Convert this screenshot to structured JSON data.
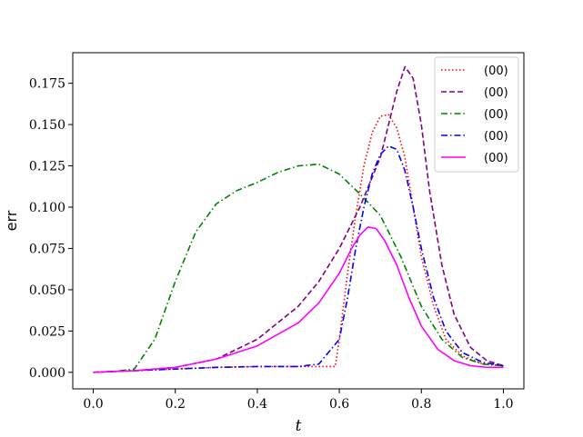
{
  "chart_data": {
    "type": "line",
    "title": "",
    "xlabel": "t",
    "ylabel": "err",
    "xlim": [
      -0.05,
      1.05
    ],
    "ylim": [
      -0.01,
      0.1935
    ],
    "xticks": [
      0.0,
      0.2,
      0.4,
      0.6,
      0.8,
      1.0
    ],
    "xtick_labels": [
      "0.0",
      "0.2",
      "0.4",
      "0.6",
      "0.8",
      "1.0"
    ],
    "yticks": [
      0.0,
      0.025,
      0.05,
      0.075,
      0.1,
      0.125,
      0.15,
      0.175
    ],
    "ytick_labels": [
      "0.000",
      "0.025",
      "0.050",
      "0.075",
      "0.100",
      "0.125",
      "0.150",
      "0.175"
    ],
    "grid": false,
    "legend_position": "top-right",
    "series": [
      {
        "name": "(00)",
        "color": "#ff0000",
        "dash": "dotted",
        "x": [
          0.0,
          0.1,
          0.2,
          0.3,
          0.4,
          0.5,
          0.55,
          0.59,
          0.6,
          0.62,
          0.64,
          0.66,
          0.68,
          0.7,
          0.72,
          0.74,
          0.76,
          0.78,
          0.8,
          0.83,
          0.86,
          0.9,
          0.95,
          1.0
        ],
        "y": [
          0.0,
          0.001,
          0.002,
          0.003,
          0.0035,
          0.0035,
          0.0035,
          0.0035,
          0.02,
          0.06,
          0.095,
          0.125,
          0.145,
          0.155,
          0.156,
          0.148,
          0.13,
          0.1,
          0.07,
          0.04,
          0.02,
          0.01,
          0.005,
          0.004
        ]
      },
      {
        "name": "(00)",
        "color": "#800080",
        "dash": "dashed",
        "x": [
          0.0,
          0.1,
          0.2,
          0.3,
          0.4,
          0.5,
          0.55,
          0.6,
          0.65,
          0.7,
          0.72,
          0.74,
          0.76,
          0.78,
          0.8,
          0.82,
          0.85,
          0.88,
          0.92,
          0.96,
          1.0
        ],
        "y": [
          0.0,
          0.001,
          0.003,
          0.008,
          0.02,
          0.04,
          0.055,
          0.075,
          0.1,
          0.13,
          0.15,
          0.17,
          0.185,
          0.178,
          0.15,
          0.11,
          0.065,
          0.035,
          0.015,
          0.007,
          0.004
        ]
      },
      {
        "name": "(00)",
        "color": "#008000",
        "dash": "dashdot",
        "x": [
          0.0,
          0.05,
          0.1,
          0.15,
          0.2,
          0.25,
          0.3,
          0.35,
          0.4,
          0.45,
          0.5,
          0.55,
          0.6,
          0.65,
          0.7,
          0.75,
          0.8,
          0.85,
          0.9,
          0.95,
          1.0
        ],
        "y": [
          0.0,
          0.0005,
          0.002,
          0.02,
          0.055,
          0.085,
          0.102,
          0.11,
          0.115,
          0.121,
          0.125,
          0.126,
          0.12,
          0.108,
          0.095,
          0.07,
          0.04,
          0.02,
          0.009,
          0.005,
          0.004
        ]
      },
      {
        "name": "(00)",
        "color": "#0000ff",
        "dash": "dashdot",
        "x": [
          0.0,
          0.1,
          0.2,
          0.3,
          0.4,
          0.5,
          0.55,
          0.6,
          0.62,
          0.64,
          0.66,
          0.68,
          0.7,
          0.72,
          0.74,
          0.76,
          0.78,
          0.8,
          0.83,
          0.86,
          0.9,
          0.95,
          1.0
        ],
        "y": [
          0.0,
          0.001,
          0.002,
          0.003,
          0.0035,
          0.0035,
          0.005,
          0.02,
          0.045,
          0.075,
          0.1,
          0.12,
          0.132,
          0.137,
          0.135,
          0.122,
          0.1,
          0.075,
          0.045,
          0.025,
          0.012,
          0.006,
          0.004
        ]
      },
      {
        "name": "(00)",
        "color": "#ff00ff",
        "dash": "solid",
        "x": [
          0.0,
          0.1,
          0.2,
          0.3,
          0.4,
          0.5,
          0.55,
          0.6,
          0.63,
          0.65,
          0.67,
          0.69,
          0.71,
          0.74,
          0.77,
          0.8,
          0.84,
          0.88,
          0.92,
          0.96,
          1.0
        ],
        "y": [
          0.0,
          0.001,
          0.003,
          0.008,
          0.016,
          0.03,
          0.042,
          0.06,
          0.075,
          0.083,
          0.088,
          0.087,
          0.08,
          0.065,
          0.045,
          0.028,
          0.014,
          0.007,
          0.004,
          0.003,
          0.003
        ]
      }
    ]
  }
}
